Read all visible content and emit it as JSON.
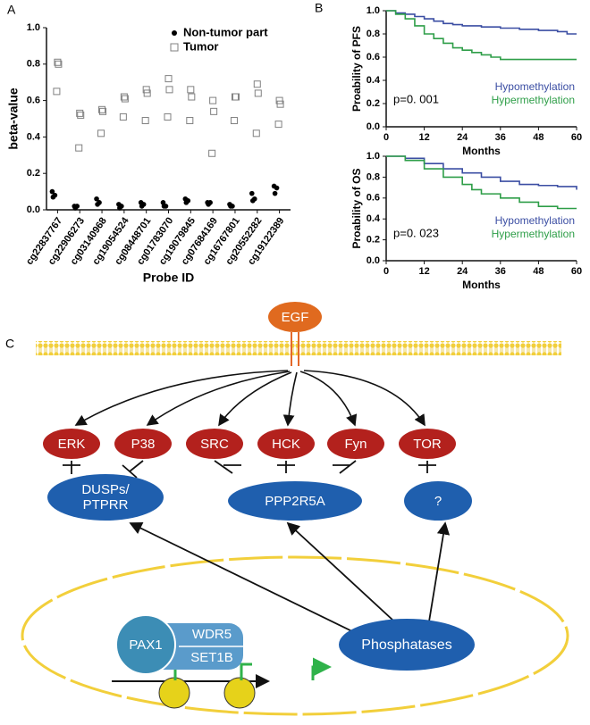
{
  "panel_labels": [
    "A",
    "B",
    "C"
  ],
  "chart_data": [
    {
      "type": "scatter",
      "x_label": "Probe ID",
      "y_label": "beta-value",
      "categories": [
        "cg22837767",
        "cg22906273",
        "cg03140968",
        "cg19054524",
        "cg08448701",
        "cg01783070",
        "cg19079845",
        "cg07684169",
        "cg16767801",
        "cg20552282",
        "cg19122389"
      ],
      "series": [
        {
          "name": "Non-tumor part",
          "color": "#000000",
          "marker": "circle",
          "values": [
            [
              0.1,
              0.08,
              0.07
            ],
            [
              0.02,
              0.02,
              0.01
            ],
            [
              0.06,
              0.04,
              0.03
            ],
            [
              0.03,
              0.02,
              0.01
            ],
            [
              0.04,
              0.03,
              0.02
            ],
            [
              0.04,
              0.02,
              0.02
            ],
            [
              0.06,
              0.05,
              0.04
            ],
            [
              0.04,
              0.04,
              0.03
            ],
            [
              0.03,
              0.02,
              0.02
            ],
            [
              0.09,
              0.06,
              0.05
            ],
            [
              0.13,
              0.12,
              0.09
            ]
          ]
        },
        {
          "name": "Tumor",
          "color": "#808080",
          "marker": "square",
          "values": [
            [
              0.81,
              0.8,
              0.65
            ],
            [
              0.53,
              0.52,
              0.34
            ],
            [
              0.55,
              0.54,
              0.42
            ],
            [
              0.62,
              0.61,
              0.51
            ],
            [
              0.66,
              0.64,
              0.49
            ],
            [
              0.72,
              0.66,
              0.51
            ],
            [
              0.66,
              0.62,
              0.49
            ],
            [
              0.6,
              0.54,
              0.31
            ],
            [
              0.62,
              0.62,
              0.49
            ],
            [
              0.69,
              0.64,
              0.42
            ],
            [
              0.6,
              0.58,
              0.47
            ]
          ]
        }
      ],
      "ylim": [
        0,
        1
      ],
      "yticks": [
        {
          "value": 0,
          "label": "0.0"
        },
        0.2,
        0.4,
        0.6,
        0.8,
        {
          "value": 1,
          "label": "1.0"
        }
      ],
      "legend": "upper right"
    },
    {
      "type": "line",
      "step": true,
      "x_label": "Months",
      "y_label": "Proability of PFS",
      "annotation": "p=0. 001",
      "xlim": [
        0,
        60
      ],
      "xticks": [
        0,
        12,
        24,
        36,
        48,
        60
      ],
      "ylim": [
        0,
        1
      ],
      "yticks": [
        {
          "value": 0,
          "label": "0.0"
        },
        0.2,
        0.4,
        0.6,
        0.8,
        {
          "value": 1,
          "label": "1.0"
        }
      ],
      "legend": "lower right",
      "series": [
        {
          "name": "Hypomethylation",
          "color": "#3b4ea3",
          "x": [
            0,
            3,
            6,
            9,
            12,
            15,
            18,
            21,
            24,
            30,
            36,
            42,
            48,
            54,
            57,
            60
          ],
          "values": [
            1,
            0.98,
            0.97,
            0.95,
            0.93,
            0.91,
            0.89,
            0.88,
            0.87,
            0.86,
            0.85,
            0.84,
            0.83,
            0.82,
            0.8,
            0.8
          ]
        },
        {
          "name": "Hypermethylation",
          "color": "#2e9e48",
          "x": [
            0,
            3,
            6,
            9,
            12,
            15,
            18,
            21,
            24,
            27,
            30,
            33,
            36,
            60
          ],
          "values": [
            1,
            0.97,
            0.93,
            0.87,
            0.8,
            0.76,
            0.72,
            0.68,
            0.66,
            0.64,
            0.62,
            0.6,
            0.58,
            0.58
          ]
        }
      ]
    },
    {
      "type": "line",
      "step": true,
      "x_label": "Months",
      "y_label": "Proability of OS",
      "annotation": "p=0. 023",
      "xlim": [
        0,
        60
      ],
      "xticks": [
        0,
        12,
        24,
        36,
        48,
        60
      ],
      "ylim": [
        0,
        1
      ],
      "yticks": [
        {
          "value": 0,
          "label": "0.0"
        },
        0.2,
        0.4,
        0.6,
        0.8,
        {
          "value": 1,
          "label": "1.0"
        }
      ],
      "legend": "lower right",
      "series": [
        {
          "name": "Hypomethylation",
          "color": "#3b4ea3",
          "x": [
            0,
            6,
            12,
            18,
            24,
            30,
            36,
            42,
            48,
            54,
            60
          ],
          "values": [
            1,
            0.98,
            0.93,
            0.88,
            0.84,
            0.8,
            0.76,
            0.73,
            0.72,
            0.71,
            0.68
          ]
        },
        {
          "name": "Hypermethylation",
          "color": "#2e9e48",
          "x": [
            0,
            6,
            12,
            18,
            24,
            27,
            30,
            36,
            42,
            48,
            54,
            60
          ],
          "values": [
            1,
            0.96,
            0.88,
            0.8,
            0.73,
            0.68,
            0.64,
            0.6,
            0.56,
            0.52,
            0.5,
            0.5
          ]
        }
      ]
    }
  ],
  "diagram": {
    "nodes": [
      {
        "label": "EGF"
      },
      {
        "label": "ERK"
      },
      {
        "label": "P38"
      },
      {
        "label": "SRC"
      },
      {
        "label": "HCK"
      },
      {
        "label": "Fyn"
      },
      {
        "label": "TOR"
      },
      {
        "lines": [
          "DUSPs/",
          "PTPRR"
        ]
      },
      {
        "label": "PPP2R5A"
      },
      {
        "label": "?"
      },
      {
        "label": "PAX1"
      },
      {
        "label": "WDR5"
      },
      {
        "label": "SET1B"
      },
      {
        "label": "Phosphatases"
      }
    ]
  }
}
